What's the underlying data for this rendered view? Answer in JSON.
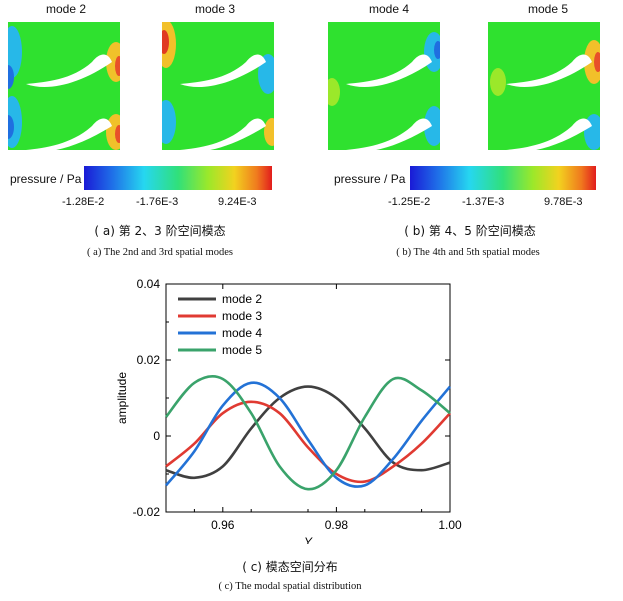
{
  "figure_a": {
    "titles": [
      "mode 2",
      "mode 3"
    ],
    "colorbar_label": "pressure / Pa",
    "ticks": [
      "-1.28E-2",
      "-1.76E-3",
      "9.24E-3"
    ],
    "caption_cn": "( a) 第 2、3 阶空间模态",
    "caption_en": "( a)  The 2nd and 3rd spatial modes"
  },
  "figure_b": {
    "titles": [
      "mode 4",
      "mode 5"
    ],
    "colorbar_label": "pressure / Pa",
    "ticks": [
      "-1.25E-2",
      "-1.37E-3",
      "9.78E-3"
    ],
    "caption_cn": "( b) 第 4、5 阶空间模态",
    "caption_en": "( b)  The 4th and 5th spatial modes"
  },
  "figure_c": {
    "caption_cn": "( c) 模态空间分布",
    "caption_en": "( c)  The modal spatial distribution"
  },
  "chart_data": {
    "type": "line",
    "xlabel": "Y",
    "ylabel": "amplitude",
    "xlim": [
      0.95,
      1.0
    ],
    "ylim": [
      -0.02,
      0.04
    ],
    "xticks": [
      "0.96",
      "0.98",
      "1.00"
    ],
    "yticks": [
      "-0.02",
      "0",
      "0.02",
      "0.04"
    ],
    "legend_position": "top-left",
    "series": [
      {
        "name": "mode 2",
        "color": "#404040",
        "x": [
          0.95,
          0.955,
          0.96,
          0.965,
          0.97,
          0.975,
          0.98,
          0.985,
          0.99,
          0.995,
          1.0
        ],
        "y": [
          -0.009,
          -0.011,
          -0.008,
          0.002,
          0.01,
          0.013,
          0.01,
          0.002,
          -0.007,
          -0.009,
          -0.007
        ]
      },
      {
        "name": "mode 3",
        "color": "#e03a32",
        "x": [
          0.95,
          0.955,
          0.96,
          0.965,
          0.97,
          0.975,
          0.98,
          0.985,
          0.99,
          0.995,
          1.0
        ],
        "y": [
          -0.008,
          -0.002,
          0.006,
          0.009,
          0.006,
          -0.003,
          -0.01,
          -0.012,
          -0.008,
          -0.002,
          0.006
        ]
      },
      {
        "name": "mode 4",
        "color": "#2372d6",
        "x": [
          0.95,
          0.955,
          0.96,
          0.965,
          0.97,
          0.975,
          0.98,
          0.985,
          0.99,
          0.995,
          1.0
        ],
        "y": [
          -0.013,
          -0.004,
          0.008,
          0.014,
          0.01,
          -0.001,
          -0.011,
          -0.013,
          -0.006,
          0.004,
          0.013
        ]
      },
      {
        "name": "mode 5",
        "color": "#3aa36b",
        "x": [
          0.95,
          0.955,
          0.96,
          0.965,
          0.97,
          0.975,
          0.98,
          0.985,
          0.99,
          0.995,
          1.0
        ],
        "y": [
          0.005,
          0.014,
          0.015,
          0.006,
          -0.008,
          -0.014,
          -0.009,
          0.005,
          0.015,
          0.012,
          0.006
        ]
      }
    ]
  }
}
